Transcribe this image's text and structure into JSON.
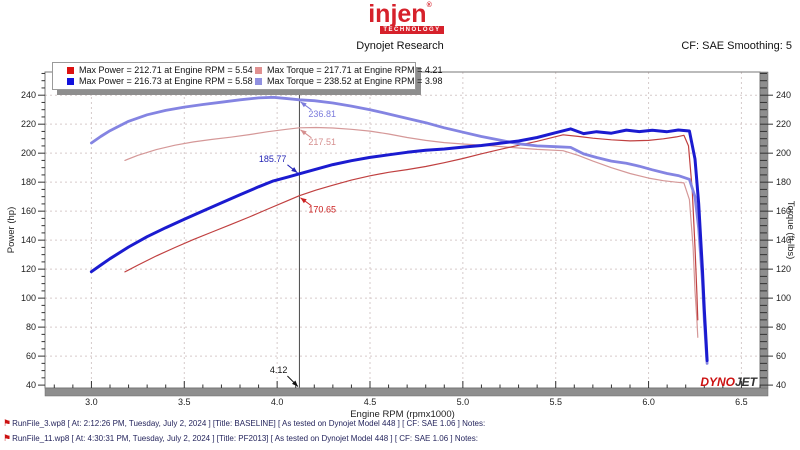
{
  "header": {
    "logo_word": "injen",
    "logo_reg": "®",
    "logo_sub": "TECHNOLOGY",
    "title": "Dynojet Research",
    "smoothing": "CF: SAE Smoothing: 5"
  },
  "legend": {
    "position": "top-left",
    "entries": [
      {
        "color": "#dd1111",
        "label": "Max Power = 212.71 at Engine RPM = 5.54"
      },
      {
        "color": "#e09090",
        "label": "Max Torque = 217.71 at Engine RPM = 4.21"
      },
      {
        "color": "#1111dd",
        "label": "Max Power = 216.73 at Engine RPM = 5.58"
      },
      {
        "color": "#9090e0",
        "label": "Max Torque = 238.52 at Engine RPM = 3.98"
      }
    ]
  },
  "chart_data": {
    "type": "line",
    "title": "Dynojet Research",
    "xlabel": "Engine RPM (rpmx1000)",
    "ylabel_left": "Power (hp)",
    "ylabel_right": "Torque (ft-lbs)",
    "xlim": [
      2.75,
      6.6
    ],
    "ylim": [
      38,
      256
    ],
    "x_ticks": [
      3.0,
      3.5,
      4.0,
      4.5,
      5.0,
      5.5,
      6.0,
      6.5
    ],
    "x_tick_labels": [
      "3.0",
      "3.5",
      "4.0",
      "4.5",
      "5.0",
      "5.5",
      "6.0",
      "6.5"
    ],
    "x_minor_step": 0.1,
    "y_ticks": [
      40,
      60,
      80,
      100,
      120,
      140,
      160,
      180,
      200,
      220,
      240
    ],
    "y_minor_step": 5,
    "grid": true,
    "legend_position": "top-left",
    "cursor": {
      "rpm": 4.12,
      "label": "4.12"
    },
    "annotations": [
      {
        "label": "236.81",
        "value": 236.81,
        "color": "#7b7bdc",
        "placement": "right-below"
      },
      {
        "label": "217.51",
        "value": 217.51,
        "color": "#d58f8f",
        "placement": "right-below"
      },
      {
        "label": "185.77",
        "value": 185.77,
        "color": "#2525b5",
        "placement": "left-above"
      },
      {
        "label": "170.65",
        "value": 170.65,
        "color": "#cc2020",
        "placement": "right-below"
      }
    ],
    "max_points": {
      "baseline": {
        "max_power": 212.71,
        "max_power_rpm": 5.54,
        "max_torque": 217.71,
        "max_torque_rpm": 4.21
      },
      "pf2013": {
        "max_power": 216.73,
        "max_power_rpm": 5.58,
        "max_torque": 238.52,
        "max_torque_rpm": 3.98
      }
    },
    "series": [
      {
        "name": "BASELINE Torque",
        "unit": "ft-lbs",
        "color": "#d59898",
        "width": 1.2,
        "points": [
          [
            3.18,
            195
          ],
          [
            3.25,
            198.5
          ],
          [
            3.35,
            202.5
          ],
          [
            3.45,
            205.5
          ],
          [
            3.55,
            207.8
          ],
          [
            3.65,
            209.5
          ],
          [
            3.75,
            211
          ],
          [
            3.85,
            212.8
          ],
          [
            3.95,
            214.8
          ],
          [
            4.05,
            216.5
          ],
          [
            4.12,
            217.51
          ],
          [
            4.21,
            217.71
          ],
          [
            4.3,
            217.4
          ],
          [
            4.4,
            216.5
          ],
          [
            4.5,
            215.2
          ],
          [
            4.6,
            213.2
          ],
          [
            4.7,
            210.8
          ],
          [
            4.8,
            208.8
          ],
          [
            4.9,
            207.3
          ],
          [
            5.0,
            206.3
          ],
          [
            5.1,
            205.6
          ],
          [
            5.2,
            204.6
          ],
          [
            5.3,
            203.6
          ],
          [
            5.4,
            202.6
          ],
          [
            5.54,
            201.7
          ],
          [
            5.62,
            198.5
          ],
          [
            5.7,
            194.5
          ],
          [
            5.8,
            190
          ],
          [
            5.9,
            186
          ],
          [
            6.0,
            182.8
          ],
          [
            6.08,
            181
          ],
          [
            6.15,
            180
          ],
          [
            6.19,
            179.5
          ],
          [
            6.22,
            168
          ],
          [
            6.24,
            135
          ],
          [
            6.25,
            105
          ],
          [
            6.26,
            85
          ],
          [
            6.265,
            73
          ]
        ]
      },
      {
        "name": "BASELINE Power",
        "unit": "hp",
        "color": "#c04040",
        "width": 1.2,
        "points": [
          [
            3.18,
            118.1
          ],
          [
            3.25,
            122.8
          ],
          [
            3.35,
            129.1
          ],
          [
            3.45,
            134.9
          ],
          [
            3.55,
            140.5
          ],
          [
            3.65,
            145.6
          ],
          [
            3.75,
            150.7
          ],
          [
            3.85,
            156
          ],
          [
            3.95,
            161.5
          ],
          [
            4.05,
            166.9
          ],
          [
            4.12,
            170.65
          ],
          [
            4.21,
            174.5
          ],
          [
            4.3,
            177.9
          ],
          [
            4.4,
            181.4
          ],
          [
            4.5,
            184.4
          ],
          [
            4.6,
            186.8
          ],
          [
            4.7,
            188.7
          ],
          [
            4.8,
            190.8
          ],
          [
            4.9,
            193.4
          ],
          [
            5.0,
            196.3
          ],
          [
            5.1,
            199.6
          ],
          [
            5.2,
            202.6
          ],
          [
            5.3,
            205.4
          ],
          [
            5.4,
            208.2
          ],
          [
            5.54,
            212.71
          ],
          [
            5.62,
            211.6
          ],
          [
            5.7,
            210.3
          ],
          [
            5.8,
            209.2
          ],
          [
            5.9,
            208.5
          ],
          [
            6.0,
            208.8
          ],
          [
            6.08,
            209.9
          ],
          [
            6.15,
            211.2
          ],
          [
            6.19,
            212.3
          ],
          [
            6.215,
            205
          ],
          [
            6.235,
            175
          ],
          [
            6.25,
            135
          ],
          [
            6.26,
            103
          ],
          [
            6.265,
            85
          ]
        ]
      },
      {
        "name": "PF2013 Torque",
        "unit": "ft-lbs",
        "color": "#8484e2",
        "width": 2.8,
        "points": [
          [
            3.0,
            207
          ],
          [
            3.05,
            211.5
          ],
          [
            3.1,
            215.5
          ],
          [
            3.2,
            222
          ],
          [
            3.3,
            226.5
          ],
          [
            3.4,
            229.5
          ],
          [
            3.5,
            231.8
          ],
          [
            3.6,
            233.6
          ],
          [
            3.7,
            235.2
          ],
          [
            3.8,
            236.8
          ],
          [
            3.9,
            238.1
          ],
          [
            3.98,
            238.52
          ],
          [
            4.06,
            237.6
          ],
          [
            4.12,
            236.81
          ],
          [
            4.2,
            236.2
          ],
          [
            4.3,
            234.6
          ],
          [
            4.4,
            232.5
          ],
          [
            4.5,
            230
          ],
          [
            4.6,
            227
          ],
          [
            4.7,
            224
          ],
          [
            4.8,
            221
          ],
          [
            4.9,
            217.5
          ],
          [
            5.0,
            214.5
          ],
          [
            5.1,
            211.5
          ],
          [
            5.2,
            209
          ],
          [
            5.3,
            206.5
          ],
          [
            5.4,
            205
          ],
          [
            5.5,
            204.5
          ],
          [
            5.58,
            204
          ],
          [
            5.65,
            199.5
          ],
          [
            5.72,
            197
          ],
          [
            5.8,
            194.5
          ],
          [
            5.88,
            193
          ],
          [
            5.95,
            191
          ],
          [
            6.02,
            188.5
          ],
          [
            6.1,
            186
          ],
          [
            6.16,
            184.5
          ],
          [
            6.22,
            182
          ],
          [
            6.25,
            170
          ],
          [
            6.27,
            148
          ],
          [
            6.29,
            112
          ],
          [
            6.3,
            85
          ],
          [
            6.31,
            65
          ],
          [
            6.315,
            55
          ]
        ]
      },
      {
        "name": "PF2013 Power",
        "unit": "hp",
        "color": "#1b1bd0",
        "width": 3,
        "points": [
          [
            3.0,
            118.2
          ],
          [
            3.05,
            122.8
          ],
          [
            3.1,
            127.2
          ],
          [
            3.2,
            135.3
          ],
          [
            3.3,
            142.4
          ],
          [
            3.4,
            148.6
          ],
          [
            3.5,
            154.4
          ],
          [
            3.6,
            160.1
          ],
          [
            3.7,
            165.7
          ],
          [
            3.8,
            171.3
          ],
          [
            3.9,
            176.8
          ],
          [
            3.98,
            180.9
          ],
          [
            4.06,
            183.6
          ],
          [
            4.12,
            185.77
          ],
          [
            4.2,
            188.6
          ],
          [
            4.3,
            192.1
          ],
          [
            4.4,
            194.8
          ],
          [
            4.5,
            197.1
          ],
          [
            4.6,
            198.9
          ],
          [
            4.7,
            200.6
          ],
          [
            4.8,
            202
          ],
          [
            4.9,
            202.9
          ],
          [
            5.0,
            204.2
          ],
          [
            5.1,
            205.3
          ],
          [
            5.2,
            206.9
          ],
          [
            5.3,
            208.4
          ],
          [
            5.4,
            210.8
          ],
          [
            5.5,
            214.1
          ],
          [
            5.58,
            216.73
          ],
          [
            5.65,
            213.5
          ],
          [
            5.72,
            214.8
          ],
          [
            5.8,
            213.8
          ],
          [
            5.88,
            215.9
          ],
          [
            5.95,
            214.9
          ],
          [
            6.02,
            215.8
          ],
          [
            6.1,
            214.8
          ],
          [
            6.16,
            216
          ],
          [
            6.22,
            215.3
          ],
          [
            6.25,
            196
          ],
          [
            6.27,
            165
          ],
          [
            6.29,
            120
          ],
          [
            6.3,
            92
          ],
          [
            6.31,
            70
          ],
          [
            6.315,
            57
          ]
        ]
      }
    ]
  },
  "watermark": {
    "part1": "DYNO",
    "part2": "JET"
  },
  "footer": {
    "runs": [
      {
        "icon": "flag",
        "text": "RunFile_3.wp8 [ At: 2:12:26 PM, Tuesday, July 2, 2024 ] [Title: BASELINE]  [ As tested on Dynojet Model 448 ] [ CF: SAE 1.06 ] Notes:"
      },
      {
        "icon": "flag",
        "text": "RunFile_11.wp8 [ At: 4:30:31 PM, Tuesday, July 2, 2024 ] [Title: PF2013]  [ As tested on Dynojet Model 448 ] [ CF: SAE 1.06 ] Notes:"
      }
    ]
  }
}
